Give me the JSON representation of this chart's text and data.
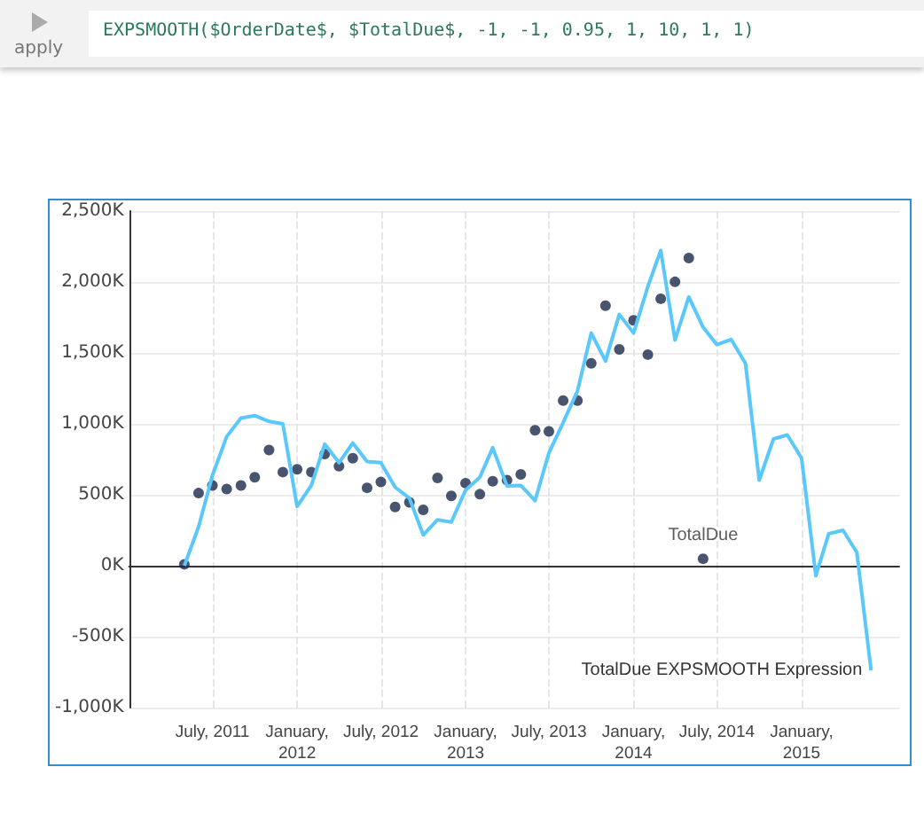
{
  "chart_data": {
    "type": "line",
    "annotations": [
      "EXPSMOOTH($OrderDate$, $TotalDue$, -1, -1, 0.95, 1, 10, 1, 1)",
      "apply"
    ],
    "x": [
      "2011-05",
      "2011-06",
      "2011-07",
      "2011-08",
      "2011-09",
      "2011-10",
      "2011-11",
      "2011-12",
      "2012-01",
      "2012-02",
      "2012-03",
      "2012-04",
      "2012-05",
      "2012-06",
      "2012-07",
      "2012-08",
      "2012-09",
      "2012-10",
      "2012-11",
      "2012-12",
      "2013-01",
      "2013-02",
      "2013-03",
      "2013-04",
      "2013-05",
      "2013-06",
      "2013-07",
      "2013-08",
      "2013-09",
      "2013-10",
      "2013-11",
      "2013-12",
      "2014-01",
      "2014-02",
      "2014-03",
      "2014-04",
      "2014-05",
      "2014-06",
      "2014-07",
      "2014-08",
      "2014-09",
      "2014-10",
      "2014-11",
      "2014-12",
      "2015-01",
      "2015-02",
      "2015-03",
      "2015-04",
      "2015-05",
      "2015-06"
    ],
    "series": [
      {
        "name": "TotalDue EXPSMOOTH Expression",
        "color": "#5ac8fa",
        "values": [
          0,
          275,
          636,
          910,
          1041,
          1058,
          1017,
          1000,
          418,
          566,
          857,
          726,
          865,
          734,
          726,
          553,
          476,
          217,
          324,
          308,
          533,
          623,
          832,
          562,
          566,
          459,
          795,
          1009,
          1230,
          1640,
          1443,
          1771,
          1640,
          1968,
          2222,
          1591,
          1894,
          1681,
          1558,
          1595,
          1427,
          603,
          894,
          922,
          758,
          -70,
          226,
          250,
          94,
          -738
        ]
      },
      {
        "name": "TotalDue",
        "type": "scatter",
        "color": "#1b2a4a",
        "values": [
          10,
          512,
          566,
          541,
          566,
          623,
          816,
          660,
          680,
          660,
          787,
          701,
          758,
          549,
          590,
          414,
          447,
          394,
          619,
          492,
          582,
          504,
          595,
          603,
          644,
          955,
          947,
          1164,
          1164,
          1427,
          1833,
          1525,
          1730,
          1488,
          1882,
          2001,
          2169,
          49,
          null,
          null,
          null,
          null,
          null,
          null,
          null,
          null,
          null,
          null,
          null,
          null
        ]
      }
    ],
    "xlim": [
      "2011-01",
      "2015-08"
    ],
    "xticks": [
      {
        "value": "2011-07",
        "label": "July, 2011"
      },
      {
        "value": "2012-01",
        "label": "January,\n2012"
      },
      {
        "value": "2012-07",
        "label": "July, 2012"
      },
      {
        "value": "2013-01",
        "label": "January,\n2013"
      },
      {
        "value": "2013-07",
        "label": "July, 2013"
      },
      {
        "value": "2014-01",
        "label": "January,\n2014"
      },
      {
        "value": "2014-07",
        "label": "July, 2014"
      },
      {
        "value": "2015-01",
        "label": "January,\n2015"
      }
    ],
    "ylim": [
      -1000,
      2500
    ],
    "yticks": [
      {
        "value": -1000,
        "label": "-1,000K"
      },
      {
        "value": -500,
        "label": "-500K"
      },
      {
        "value": 0,
        "label": "0K"
      },
      {
        "value": 500,
        "label": "500K"
      },
      {
        "value": 1000,
        "label": "1,000K"
      },
      {
        "value": 1500,
        "label": "1,500K"
      },
      {
        "value": 2000,
        "label": "2,000K"
      },
      {
        "value": 2500,
        "label": "2,500K"
      }
    ],
    "grid": true,
    "legend": false
  }
}
